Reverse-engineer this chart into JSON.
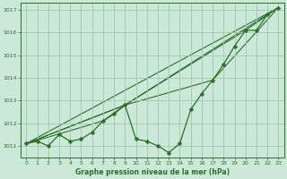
{
  "background_color": "#cce8d8",
  "grid_color": "#99ccaa",
  "line_color": "#2d6e2d",
  "title": "Graphe pression niveau de la mer (hPa)",
  "xlim": [
    -0.5,
    23.5
  ],
  "ylim": [
    1010.5,
    1017.3
  ],
  "yticks": [
    1011,
    1012,
    1013,
    1014,
    1015,
    1016,
    1017
  ],
  "xticks": [
    0,
    1,
    2,
    3,
    4,
    5,
    6,
    7,
    8,
    9,
    10,
    11,
    12,
    13,
    14,
    15,
    16,
    17,
    18,
    19,
    20,
    21,
    22,
    23
  ],
  "main_series": {
    "x": [
      0,
      1,
      2,
      3,
      4,
      5,
      6,
      7,
      8,
      9,
      10,
      11,
      12,
      13,
      14,
      15,
      16,
      17,
      18,
      19,
      20,
      21,
      22,
      23
    ],
    "y": [
      1011.1,
      1011.2,
      1011.0,
      1011.5,
      1011.2,
      1011.3,
      1011.6,
      1012.1,
      1012.4,
      1012.8,
      1011.3,
      1011.2,
      1011.0,
      1010.7,
      1011.1,
      1012.6,
      1013.3,
      1013.9,
      1014.6,
      1015.4,
      1016.1,
      1016.1,
      1016.8,
      1017.1
    ],
    "marker": "D",
    "markersize": 2.5,
    "linewidth": 0.9,
    "linestyle": "-"
  },
  "straight_lines": [
    {
      "x": [
        0,
        23
      ],
      "y": [
        1011.1,
        1017.1
      ]
    },
    {
      "x": [
        0,
        7,
        9,
        23
      ],
      "y": [
        1011.1,
        1012.1,
        1012.8,
        1017.1
      ]
    },
    {
      "x": [
        0,
        9,
        17,
        23
      ],
      "y": [
        1011.1,
        1012.8,
        1013.9,
        1017.1
      ]
    },
    {
      "x": [
        0,
        9,
        20,
        23
      ],
      "y": [
        1011.1,
        1012.8,
        1016.1,
        1017.1
      ]
    }
  ]
}
